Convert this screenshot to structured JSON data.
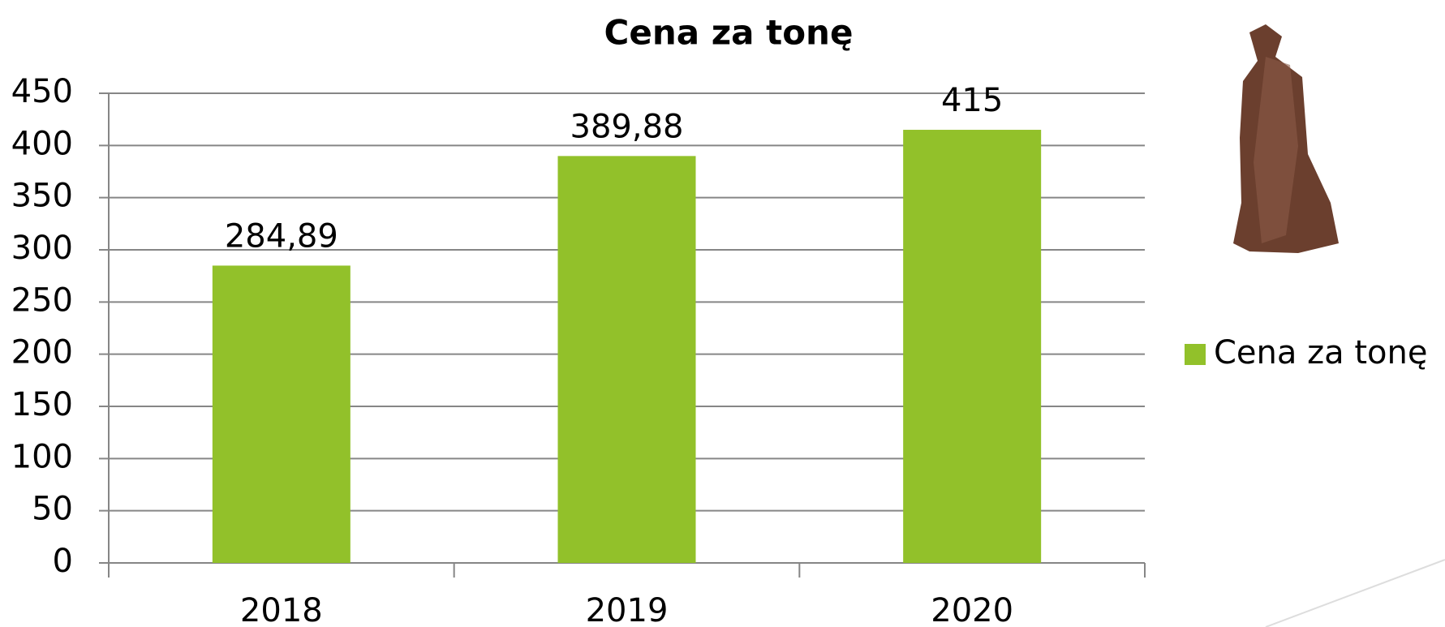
{
  "chart_data": {
    "type": "bar",
    "title": "Cena za tonę",
    "categories": [
      "2018",
      "2019",
      "2020"
    ],
    "series": [
      {
        "name": "Cena za tonę",
        "color": "#92c12a",
        "values": [
          284.89,
          389.88,
          415
        ],
        "value_labels": [
          "284,89",
          "389,88",
          "415"
        ]
      }
    ],
    "ylim": [
      0,
      450
    ],
    "yticks": [
      0,
      50,
      100,
      150,
      200,
      250,
      300,
      350,
      400,
      450
    ],
    "grid": true,
    "legend": "right"
  }
}
